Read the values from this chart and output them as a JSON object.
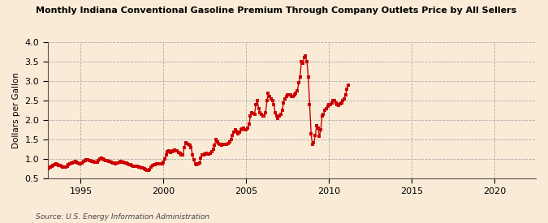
{
  "title": "Monthly Indiana Conventional Gasoline Premium Through Company Outlets Price by All Sellers",
  "ylabel": "Dollars per Gallon",
  "source": "Source: U.S. Energy Information Administration",
  "ylim": [
    0.5,
    4.0
  ],
  "xlim": [
    1993.0,
    2022.5
  ],
  "yticks": [
    0.5,
    1.0,
    1.5,
    2.0,
    2.5,
    3.0,
    3.5,
    4.0
  ],
  "xticks": [
    1995,
    2000,
    2005,
    2010,
    2015,
    2020
  ],
  "bg_color": "#faebd7",
  "dot_color": "#cc0000",
  "line_color": "#cc0000",
  "line_width": 1.0,
  "data": [
    [
      1993.0,
      0.76
    ],
    [
      1993.08,
      0.78
    ],
    [
      1993.17,
      0.8
    ],
    [
      1993.25,
      0.82
    ],
    [
      1993.33,
      0.84
    ],
    [
      1993.42,
      0.87
    ],
    [
      1993.5,
      0.88
    ],
    [
      1993.58,
      0.87
    ],
    [
      1993.67,
      0.84
    ],
    [
      1993.75,
      0.83
    ],
    [
      1993.83,
      0.82
    ],
    [
      1993.92,
      0.8
    ],
    [
      1994.0,
      0.79
    ],
    [
      1994.08,
      0.8
    ],
    [
      1994.17,
      0.81
    ],
    [
      1994.25,
      0.85
    ],
    [
      1994.33,
      0.89
    ],
    [
      1994.42,
      0.9
    ],
    [
      1994.5,
      0.91
    ],
    [
      1994.58,
      0.93
    ],
    [
      1994.67,
      0.94
    ],
    [
      1994.75,
      0.93
    ],
    [
      1994.83,
      0.91
    ],
    [
      1994.92,
      0.89
    ],
    [
      1995.0,
      0.89
    ],
    [
      1995.08,
      0.9
    ],
    [
      1995.17,
      0.94
    ],
    [
      1995.25,
      0.97
    ],
    [
      1995.33,
      0.99
    ],
    [
      1995.42,
      0.98
    ],
    [
      1995.5,
      0.97
    ],
    [
      1995.58,
      0.96
    ],
    [
      1995.67,
      0.95
    ],
    [
      1995.75,
      0.94
    ],
    [
      1995.83,
      0.93
    ],
    [
      1995.92,
      0.92
    ],
    [
      1996.0,
      0.92
    ],
    [
      1996.08,
      0.96
    ],
    [
      1996.17,
      1.0
    ],
    [
      1996.25,
      1.02
    ],
    [
      1996.33,
      1.0
    ],
    [
      1996.42,
      0.98
    ],
    [
      1996.5,
      0.97
    ],
    [
      1996.58,
      0.96
    ],
    [
      1996.67,
      0.95
    ],
    [
      1996.75,
      0.94
    ],
    [
      1996.83,
      0.93
    ],
    [
      1996.92,
      0.91
    ],
    [
      1997.0,
      0.9
    ],
    [
      1997.08,
      0.89
    ],
    [
      1997.17,
      0.9
    ],
    [
      1997.25,
      0.91
    ],
    [
      1997.33,
      0.93
    ],
    [
      1997.42,
      0.94
    ],
    [
      1997.5,
      0.93
    ],
    [
      1997.58,
      0.92
    ],
    [
      1997.67,
      0.91
    ],
    [
      1997.75,
      0.9
    ],
    [
      1997.83,
      0.88
    ],
    [
      1997.92,
      0.87
    ],
    [
      1998.0,
      0.85
    ],
    [
      1998.08,
      0.83
    ],
    [
      1998.17,
      0.82
    ],
    [
      1998.25,
      0.81
    ],
    [
      1998.33,
      0.82
    ],
    [
      1998.42,
      0.81
    ],
    [
      1998.5,
      0.8
    ],
    [
      1998.58,
      0.79
    ],
    [
      1998.67,
      0.78
    ],
    [
      1998.75,
      0.77
    ],
    [
      1998.83,
      0.75
    ],
    [
      1998.92,
      0.73
    ],
    [
      1999.0,
      0.72
    ],
    [
      1999.08,
      0.72
    ],
    [
      1999.17,
      0.74
    ],
    [
      1999.25,
      0.79
    ],
    [
      1999.33,
      0.83
    ],
    [
      1999.42,
      0.85
    ],
    [
      1999.5,
      0.87
    ],
    [
      1999.58,
      0.88
    ],
    [
      1999.67,
      0.88
    ],
    [
      1999.75,
      0.88
    ],
    [
      1999.83,
      0.88
    ],
    [
      1999.92,
      0.88
    ],
    [
      2000.0,
      0.92
    ],
    [
      2000.08,
      1.0
    ],
    [
      2000.17,
      1.12
    ],
    [
      2000.25,
      1.2
    ],
    [
      2000.33,
      1.22
    ],
    [
      2000.42,
      1.18
    ],
    [
      2000.5,
      1.2
    ],
    [
      2000.58,
      1.22
    ],
    [
      2000.67,
      1.23
    ],
    [
      2000.75,
      1.22
    ],
    [
      2000.83,
      1.22
    ],
    [
      2000.92,
      1.18
    ],
    [
      2001.0,
      1.15
    ],
    [
      2001.08,
      1.12
    ],
    [
      2001.17,
      1.1
    ],
    [
      2001.25,
      1.3
    ],
    [
      2001.33,
      1.42
    ],
    [
      2001.42,
      1.4
    ],
    [
      2001.5,
      1.38
    ],
    [
      2001.58,
      1.36
    ],
    [
      2001.67,
      1.3
    ],
    [
      2001.75,
      1.12
    ],
    [
      2001.83,
      0.98
    ],
    [
      2001.92,
      0.88
    ],
    [
      2002.0,
      0.86
    ],
    [
      2002.08,
      0.88
    ],
    [
      2002.17,
      0.9
    ],
    [
      2002.25,
      1.02
    ],
    [
      2002.33,
      1.1
    ],
    [
      2002.42,
      1.12
    ],
    [
      2002.5,
      1.13
    ],
    [
      2002.58,
      1.15
    ],
    [
      2002.67,
      1.14
    ],
    [
      2002.75,
      1.13
    ],
    [
      2002.83,
      1.15
    ],
    [
      2002.92,
      1.2
    ],
    [
      2003.0,
      1.25
    ],
    [
      2003.08,
      1.35
    ],
    [
      2003.17,
      1.5
    ],
    [
      2003.25,
      1.45
    ],
    [
      2003.33,
      1.4
    ],
    [
      2003.42,
      1.38
    ],
    [
      2003.5,
      1.35
    ],
    [
      2003.58,
      1.37
    ],
    [
      2003.67,
      1.38
    ],
    [
      2003.75,
      1.37
    ],
    [
      2003.83,
      1.38
    ],
    [
      2003.92,
      1.4
    ],
    [
      2004.0,
      1.45
    ],
    [
      2004.08,
      1.5
    ],
    [
      2004.17,
      1.6
    ],
    [
      2004.25,
      1.7
    ],
    [
      2004.33,
      1.75
    ],
    [
      2004.42,
      1.72
    ],
    [
      2004.5,
      1.65
    ],
    [
      2004.58,
      1.7
    ],
    [
      2004.67,
      1.75
    ],
    [
      2004.75,
      1.78
    ],
    [
      2004.83,
      1.8
    ],
    [
      2004.92,
      1.75
    ],
    [
      2005.0,
      1.75
    ],
    [
      2005.08,
      1.8
    ],
    [
      2005.17,
      1.9
    ],
    [
      2005.25,
      2.1
    ],
    [
      2005.33,
      2.2
    ],
    [
      2005.42,
      2.18
    ],
    [
      2005.5,
      2.15
    ],
    [
      2005.58,
      2.4
    ],
    [
      2005.67,
      2.5
    ],
    [
      2005.75,
      2.3
    ],
    [
      2005.83,
      2.2
    ],
    [
      2005.92,
      2.15
    ],
    [
      2006.0,
      2.1
    ],
    [
      2006.08,
      2.1
    ],
    [
      2006.17,
      2.2
    ],
    [
      2006.25,
      2.5
    ],
    [
      2006.33,
      2.7
    ],
    [
      2006.42,
      2.6
    ],
    [
      2006.5,
      2.55
    ],
    [
      2006.58,
      2.5
    ],
    [
      2006.67,
      2.4
    ],
    [
      2006.75,
      2.2
    ],
    [
      2006.83,
      2.1
    ],
    [
      2006.92,
      2.05
    ],
    [
      2007.0,
      2.1
    ],
    [
      2007.08,
      2.15
    ],
    [
      2007.17,
      2.25
    ],
    [
      2007.25,
      2.45
    ],
    [
      2007.33,
      2.55
    ],
    [
      2007.42,
      2.6
    ],
    [
      2007.5,
      2.65
    ],
    [
      2007.58,
      2.65
    ],
    [
      2007.67,
      2.65
    ],
    [
      2007.75,
      2.6
    ],
    [
      2007.83,
      2.6
    ],
    [
      2007.92,
      2.65
    ],
    [
      2008.0,
      2.7
    ],
    [
      2008.08,
      2.75
    ],
    [
      2008.17,
      2.95
    ],
    [
      2008.25,
      3.1
    ],
    [
      2008.33,
      3.5
    ],
    [
      2008.42,
      3.45
    ],
    [
      2008.5,
      3.6
    ],
    [
      2008.58,
      3.65
    ],
    [
      2008.67,
      3.5
    ],
    [
      2008.75,
      3.1
    ],
    [
      2008.83,
      2.4
    ],
    [
      2008.92,
      1.65
    ],
    [
      2009.0,
      1.38
    ],
    [
      2009.08,
      1.42
    ],
    [
      2009.17,
      1.6
    ],
    [
      2009.25,
      1.85
    ],
    [
      2009.33,
      1.8
    ],
    [
      2009.42,
      1.58
    ],
    [
      2009.5,
      1.75
    ],
    [
      2009.58,
      2.1
    ],
    [
      2009.67,
      2.15
    ],
    [
      2009.75,
      2.25
    ],
    [
      2009.83,
      2.3
    ],
    [
      2009.92,
      2.35
    ],
    [
      2010.0,
      2.4
    ],
    [
      2010.08,
      2.4
    ],
    [
      2010.17,
      2.45
    ],
    [
      2010.25,
      2.5
    ],
    [
      2010.33,
      2.5
    ],
    [
      2010.42,
      2.45
    ],
    [
      2010.5,
      2.4
    ],
    [
      2010.58,
      2.38
    ],
    [
      2010.67,
      2.42
    ],
    [
      2010.75,
      2.45
    ],
    [
      2010.83,
      2.5
    ],
    [
      2010.92,
      2.55
    ],
    [
      2011.0,
      2.65
    ],
    [
      2011.08,
      2.8
    ],
    [
      2011.17,
      2.9
    ]
  ]
}
